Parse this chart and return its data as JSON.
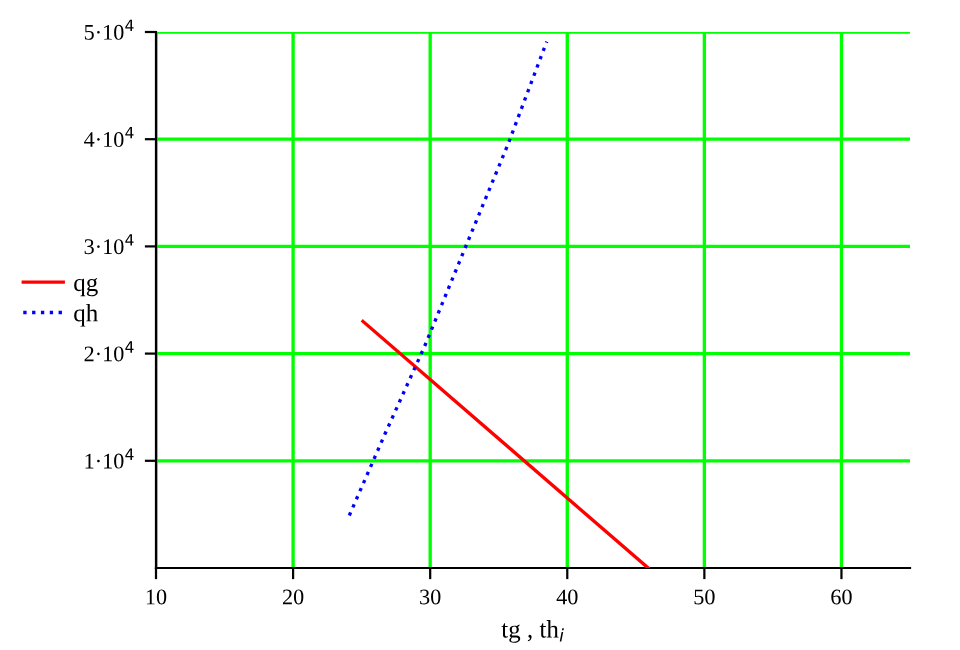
{
  "chart_data": {
    "type": "line",
    "xlabel": "tg , th$_{i}$",
    "series": [
      {
        "name": "qg",
        "color": "#ff0000",
        "line_style": "solid",
        "x": [
          25.1,
          45.9
        ],
        "values": [
          23000,
          0
        ]
      },
      {
        "name": "qh",
        "color": "#0000ff",
        "line_style": "dotted",
        "x": [
          24.1,
          26.7,
          29.6,
          32.5,
          35.7,
          38.5
        ],
        "values": [
          4900,
          12500,
          20700,
          29700,
          39600,
          49100
        ]
      }
    ],
    "xlim": [
      10,
      65
    ],
    "xticks": [
      10,
      20,
      30,
      40,
      50,
      60
    ],
    "ylim": [
      0,
      50000
    ],
    "yticks": [
      {
        "value": 10000,
        "label": "1·10$^{4}$"
      },
      {
        "value": 20000,
        "label": "2·10$^{4}$"
      },
      {
        "value": 30000,
        "label": "3·10$^{4}$"
      },
      {
        "value": 40000,
        "label": "4·10$^{4}$"
      },
      {
        "value": 50000,
        "label": "5·10$^{4}$"
      }
    ],
    "grid": true,
    "legend": "left",
    "marker": "none"
  }
}
